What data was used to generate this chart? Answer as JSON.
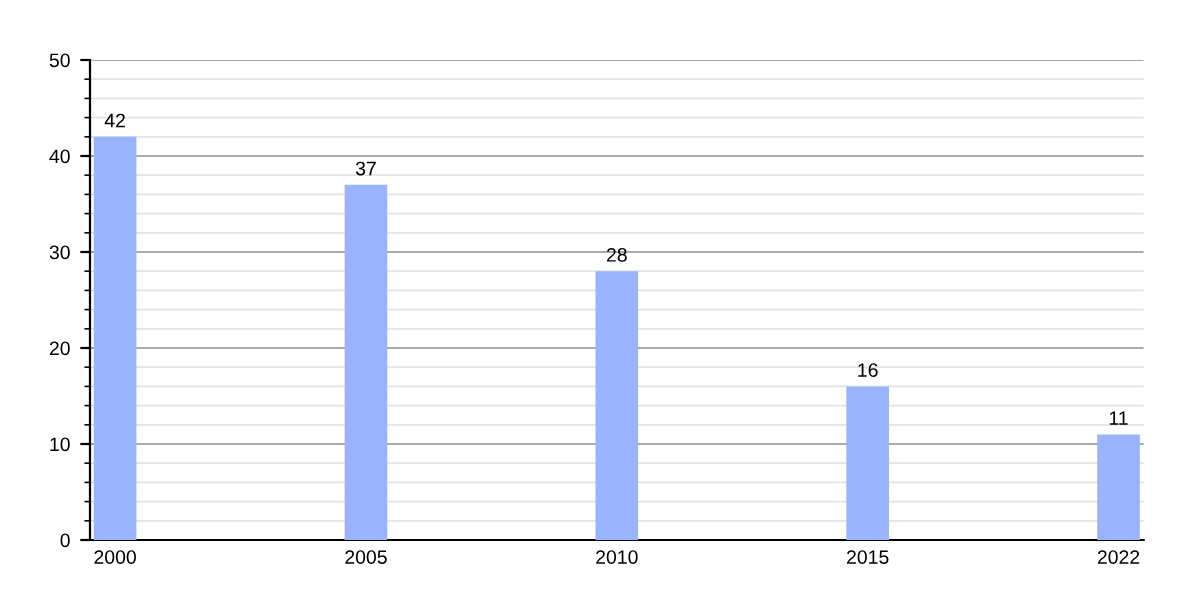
{
  "chart_data": {
    "type": "bar",
    "categories": [
      "2000",
      "2005",
      "2010",
      "2015",
      "2022"
    ],
    "values": [
      42,
      37,
      28,
      16,
      11
    ],
    "color": "#99b3ff",
    "ylim": [
      0,
      50
    ],
    "yticks": [
      0,
      10,
      20,
      30,
      40,
      50
    ],
    "grid": "y",
    "data_labels": true
  }
}
